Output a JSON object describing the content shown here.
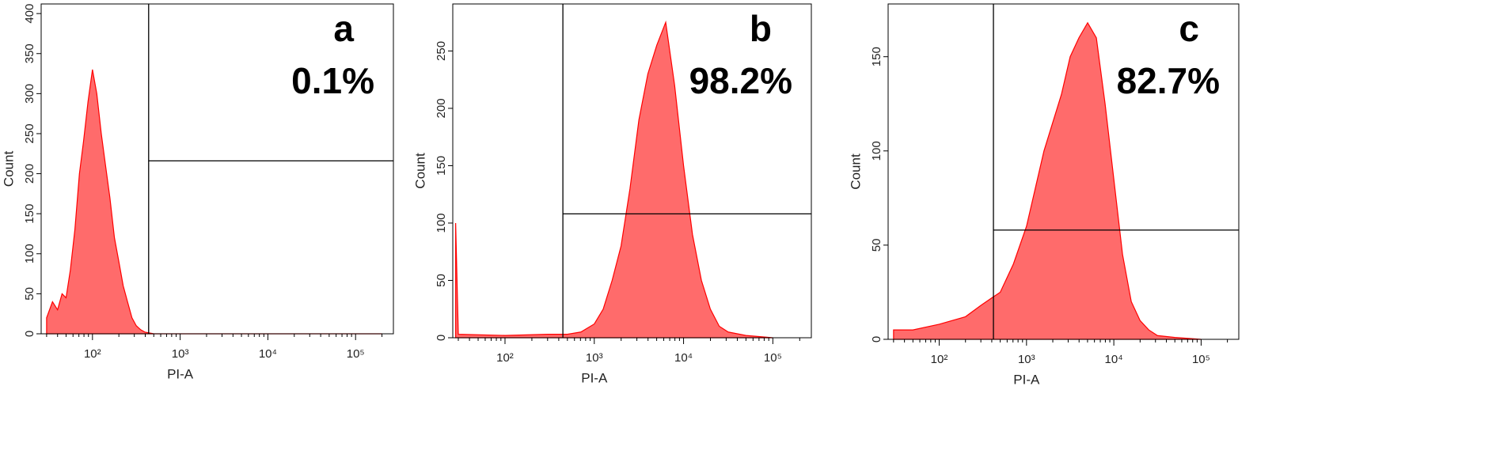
{
  "chart_data": [
    {
      "type": "area",
      "panel_label": "a",
      "annotation": "0.1%",
      "x_label": "PI-A",
      "y_label": "Count",
      "color": "#ff6b6b",
      "line_color": "#ff0000",
      "log_x": true,
      "x": [
        30,
        35,
        40,
        45,
        50,
        56,
        63,
        71,
        79,
        89,
        100,
        112,
        126,
        141,
        158,
        178,
        200,
        224,
        251,
        282,
        316,
        355,
        398,
        447,
        501,
        1000,
        200000
      ],
      "values": [
        20,
        40,
        30,
        50,
        45,
        80,
        130,
        200,
        240,
        290,
        330,
        300,
        250,
        210,
        170,
        120,
        90,
        60,
        40,
        20,
        10,
        5,
        2,
        1,
        0,
        0,
        0
      ],
      "xlim": [
        26,
        270000
      ],
      "ylim": [
        0,
        412
      ],
      "xticks": [
        {
          "value": 100,
          "label": "10²"
        },
        {
          "value": 1000,
          "label": "10³"
        },
        {
          "value": 10000,
          "label": "10⁴"
        },
        {
          "value": 100000,
          "label": "10⁵"
        }
      ],
      "yticks": [
        0,
        50,
        100,
        150,
        200,
        250,
        300,
        350,
        400
      ],
      "gate_x": 437,
      "gate_y": 216
    },
    {
      "type": "area",
      "panel_label": "b",
      "annotation": "98.2%",
      "x_label": "PI-A",
      "y_label": "Count",
      "color": "#ff6b6b",
      "line_color": "#ff0000",
      "log_x": true,
      "x": [
        28,
        30,
        100,
        300,
        500,
        708,
        1000,
        1259,
        1585,
        1995,
        2512,
        3162,
        3981,
        5012,
        6310,
        7943,
        10000,
        12589,
        15849,
        19953,
        25119,
        31623,
        50000,
        100000
      ],
      "values": [
        100,
        3,
        2,
        3,
        3,
        5,
        12,
        25,
        50,
        80,
        130,
        190,
        230,
        255,
        275,
        220,
        150,
        90,
        50,
        25,
        10,
        5,
        2,
        0
      ],
      "xlim": [
        26,
        270000
      ],
      "ylim": [
        0,
        291
      ],
      "xticks": [
        {
          "value": 100,
          "label": "10²"
        },
        {
          "value": 1000,
          "label": "10³"
        },
        {
          "value": 10000,
          "label": "10⁴"
        },
        {
          "value": 100000,
          "label": "10⁵"
        }
      ],
      "yticks": [
        0,
        50,
        100,
        150,
        200,
        250
      ],
      "gate_x": 445,
      "gate_y": 108
    },
    {
      "type": "area",
      "panel_label": "c",
      "annotation": "82.7%",
      "x_label": "PI-A",
      "y_label": "Count",
      "color": "#ff6b6b",
      "line_color": "#ff0000",
      "log_x": true,
      "x": [
        30,
        50,
        100,
        200,
        300,
        400,
        500,
        708,
        1000,
        1259,
        1585,
        1995,
        2512,
        3162,
        3981,
        5012,
        6310,
        7943,
        10000,
        12589,
        15849,
        19953,
        25119,
        31623,
        50000,
        100000
      ],
      "values": [
        5,
        5,
        8,
        12,
        18,
        22,
        25,
        40,
        60,
        80,
        100,
        115,
        130,
        150,
        160,
        168,
        160,
        125,
        85,
        45,
        20,
        10,
        5,
        2,
        1,
        0
      ],
      "xlim": [
        26,
        270000
      ],
      "ylim": [
        0,
        178
      ],
      "xticks": [
        {
          "value": 100,
          "label": "10²"
        },
        {
          "value": 1000,
          "label": "10³"
        },
        {
          "value": 10000,
          "label": "10⁴"
        },
        {
          "value": 100000,
          "label": "10⁵"
        }
      ],
      "yticks": [
        0,
        50,
        100,
        150
      ],
      "gate_x": 418,
      "gate_y": 58
    }
  ]
}
